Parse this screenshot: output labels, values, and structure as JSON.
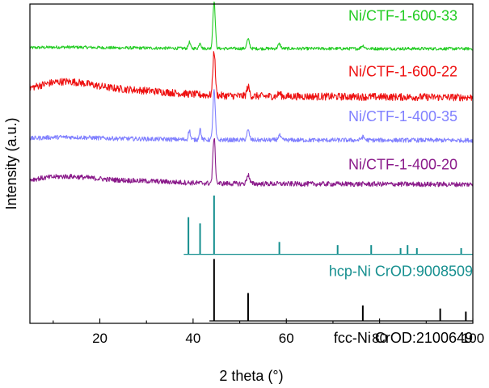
{
  "chart_data": {
    "type": "line",
    "title": "",
    "xlabel": "2 theta (°)",
    "ylabel": "Intensity (a.u.)",
    "xlim": [
      5,
      100
    ],
    "xticks": [
      20,
      40,
      60,
      80,
      100
    ],
    "xtick_labels": [
      "20",
      "40",
      "60",
      "80",
      "100"
    ],
    "yticks": [],
    "series": [
      {
        "name": "Ni/CTF-1-600-33",
        "label": "Ni/CTF-1-600-33",
        "color": "#22cc22",
        "baseline": 0.88,
        "noise": 0.005,
        "hump": 0.004,
        "peaks": [
          [
            44.5,
            0.155,
            0.35
          ],
          [
            51.8,
            0.03,
            0.4
          ],
          [
            39.2,
            0.02,
            0.3
          ],
          [
            41.5,
            0.02,
            0.3
          ],
          [
            58.5,
            0.015,
            0.4
          ],
          [
            76.4,
            0.01,
            0.5
          ]
        ]
      },
      {
        "name": "Ni/CTF-1-600-22",
        "label": "Ni/CTF-1-600-22",
        "color": "#ee1111",
        "baseline": 0.73,
        "noise": 0.012,
        "hump": 0.04,
        "peaks": [
          [
            44.5,
            0.145,
            0.35
          ],
          [
            51.8,
            0.03,
            0.4
          ],
          [
            58.5,
            0.01,
            0.4
          ]
        ]
      },
      {
        "name": "Ni/CTF-1-400-35",
        "label": "Ni/CTF-1-400-35",
        "color": "#8080ff",
        "baseline": 0.585,
        "noise": 0.007,
        "hump": 0.008,
        "peaks": [
          [
            44.5,
            0.16,
            0.35
          ],
          [
            39.2,
            0.03,
            0.3
          ],
          [
            41.5,
            0.035,
            0.3
          ],
          [
            51.8,
            0.03,
            0.4
          ],
          [
            58.5,
            0.015,
            0.4
          ],
          [
            76.4,
            0.01,
            0.5
          ]
        ]
      },
      {
        "name": "Ni/CTF-1-400-20",
        "label": "Ni/CTF-1-400-20",
        "color": "#8a1a8a",
        "baseline": 0.445,
        "noise": 0.008,
        "hump": 0.02,
        "peaks": [
          [
            44.5,
            0.15,
            0.35
          ],
          [
            51.8,
            0.03,
            0.4
          ]
        ]
      },
      {
        "name": "hcp-Ni CrOD:9008509",
        "label": "hcp-Ni CrOD:9008509",
        "color": "#168f8f",
        "type": "stick",
        "baseline": 0.215,
        "xstart": 38,
        "peaks": [
          [
            39.0,
            0.12
          ],
          [
            41.5,
            0.1
          ],
          [
            44.5,
            0.19
          ],
          [
            58.5,
            0.04
          ],
          [
            71.0,
            0.03
          ],
          [
            78.2,
            0.03
          ],
          [
            84.5,
            0.02
          ],
          [
            86.0,
            0.03
          ],
          [
            88.0,
            0.02
          ],
          [
            97.5,
            0.02
          ]
        ]
      },
      {
        "name": "fcc-Ni CrOD:2100649",
        "label": "fcc-Ni CrOD:2100649",
        "color": "#000000",
        "type": "stick",
        "baseline": 0.0,
        "xstart": 43.5,
        "peaks": [
          [
            44.5,
            0.2
          ],
          [
            51.8,
            0.09
          ],
          [
            76.4,
            0.05
          ],
          [
            93.0,
            0.04
          ],
          [
            98.5,
            0.03
          ]
        ]
      }
    ]
  }
}
